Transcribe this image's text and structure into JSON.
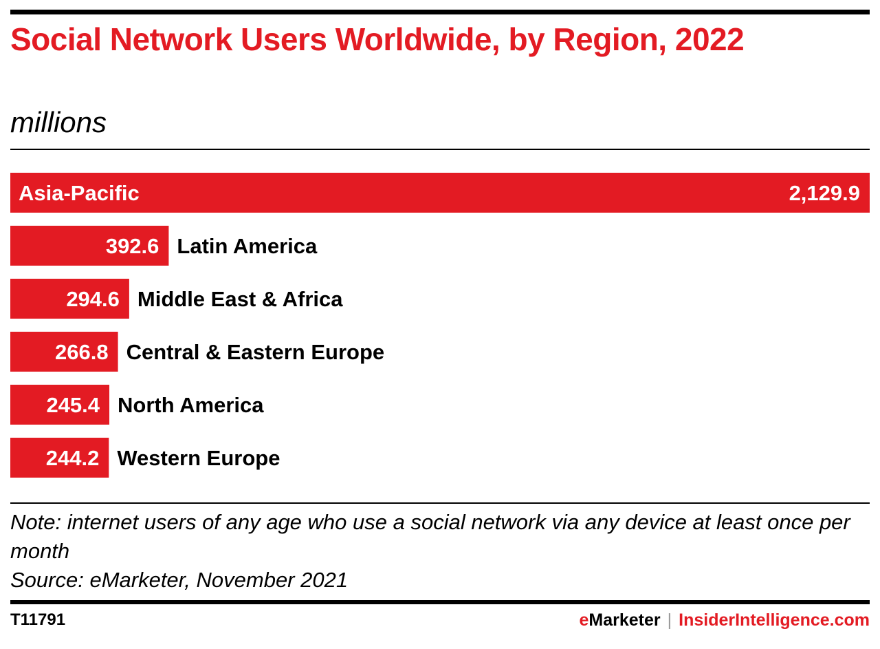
{
  "colors": {
    "accent": "#e31b23",
    "text": "#000000",
    "bar_label": "#ffffff",
    "separator": "#999999"
  },
  "chart_data": {
    "type": "bar",
    "orientation": "horizontal",
    "title": "Social Network Users Worldwide, by Region, 2022",
    "subtitle": "millions",
    "categories": [
      "Asia-Pacific",
      "Latin America",
      "Middle East & Africa",
      "Central & Eastern Europe",
      "North America",
      "Western Europe"
    ],
    "values": [
      2129.9,
      392.6,
      294.6,
      266.8,
      245.4,
      244.2
    ],
    "value_labels": [
      "2,129.9",
      "392.6",
      "294.6",
      "266.8",
      "245.4",
      "244.2"
    ],
    "bar_color": "#e31b23",
    "grid": false,
    "legend": "none"
  },
  "footer": {
    "note": "Note: internet users of any age who use a social network via any device at least once per month",
    "source": "Source: eMarketer, November 2021",
    "chart_id": "T11791",
    "brand_e": "e",
    "brand_rest": "Marketer",
    "brand_sep": "|",
    "brand_site": "InsiderIntelligence.com"
  }
}
